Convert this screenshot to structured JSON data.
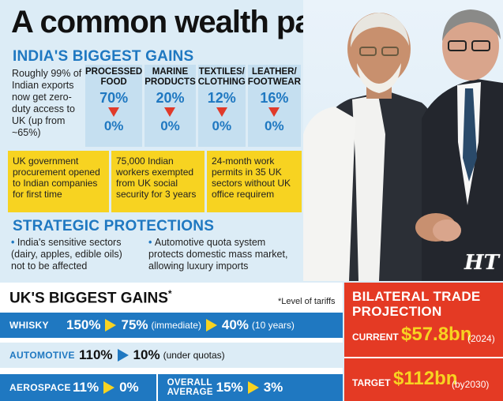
{
  "title": "A common wealth pact",
  "india_gains": {
    "heading": "INDIA'S BIGGEST GAINS",
    "intro": "Roughly 99% of Indian exports now get zero-duty access to UK (up from ~65%)",
    "sectors": [
      {
        "name": "PROCESSED FOOD",
        "from": "70%",
        "to": "0%"
      },
      {
        "name": "MARINE PRODUCTS",
        "from": "20%",
        "to": "0%"
      },
      {
        "name": "TEXTILES/ CLOTHING",
        "from": "12%",
        "to": "0%"
      },
      {
        "name": "LEATHER/ FOOTWEAR",
        "from": "16%",
        "to": "0%"
      }
    ],
    "highlights": [
      "UK government procurement opened to Indian companies for first time",
      "75,000 Indian workers exempted from UK social security for 3 years",
      "24-month work permits in 35 UK sectors without UK office requirem"
    ]
  },
  "strategic": {
    "heading": "STRATEGIC PROTECTIONS",
    "bullets": [
      "India's sensitive sectors (dairy, apples, edible oils) not to be affected",
      "Automotive quota system protects domestic mass market, allowing luxury imports"
    ]
  },
  "photo": {
    "logo": "HT"
  },
  "uk_gains": {
    "heading": "UK'S BIGGEST GAINS",
    "asterisk": "*",
    "note": "*Level of tariffs",
    "rows": [
      {
        "label": "WHISKY",
        "v1": "150%",
        "v2": "75%",
        "v2_note": "(immediate)",
        "v3": "40%",
        "v3_note": "(10 years)"
      },
      {
        "label": "AUTOMOTIVE",
        "v1": "110%",
        "v2": "10%",
        "v2_note": "(under quotas)"
      },
      {
        "label": "AEROSPACE",
        "v1": "11%",
        "v2": "0%",
        "label2": "OVERALL AVERAGE",
        "v3": "15%",
        "v4": "3%"
      }
    ]
  },
  "bilateral": {
    "heading": "BILATERAL TRADE PROJECTION",
    "current_label": "CURRENT",
    "current_value": "$57.8bn",
    "current_note": "(2024)",
    "target_label": "TARGET",
    "target_value": "$112bn",
    "target_note": "(by2030)"
  },
  "colors": {
    "blue": "#1f78c1",
    "yellow": "#f7d321",
    "red": "#e43a24",
    "light_blue": "#dcecf6"
  }
}
